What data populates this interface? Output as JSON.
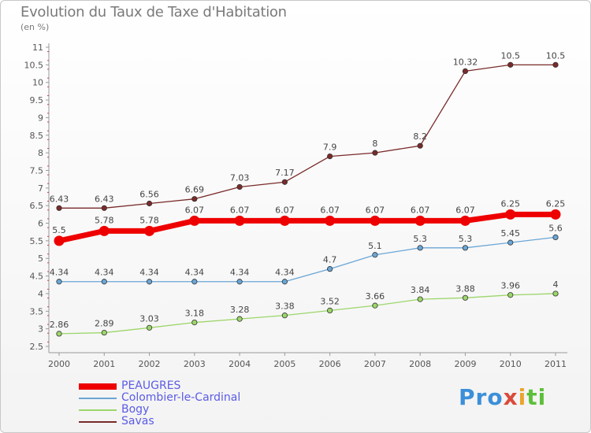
{
  "title": "Evolution du Taux de Taxe d'Habitation",
  "subtitle": "(en %)",
  "brand": {
    "p1": "Pro",
    "p2": "x",
    "p3": "i",
    "p4": "ti"
  },
  "chart_data": {
    "type": "line",
    "categories": [
      "2000",
      "2001",
      "2002",
      "2003",
      "2004",
      "2005",
      "2006",
      "2007",
      "2008",
      "2009",
      "2010",
      "2011"
    ],
    "ylim": [
      2.5,
      11
    ],
    "yticks": [
      2.5,
      3,
      3.5,
      4,
      4.5,
      5,
      5.5,
      6,
      6.5,
      7,
      7.5,
      8,
      8.5,
      9,
      9.5,
      10,
      10.5,
      11
    ],
    "ytick_labels": [
      "2.5",
      "3",
      "3.5",
      "4",
      "4.5",
      "5",
      "5.5",
      "6",
      "6.5",
      "7",
      "7.5",
      "8",
      "8.5",
      "9",
      "9.5",
      "10",
      "10.5",
      "11"
    ],
    "grid": false,
    "legend_position": "bottom-left",
    "series": [
      {
        "name": "PEAUGRES",
        "color": "#ee0000",
        "values": [
          5.5,
          5.78,
          5.78,
          6.07,
          6.07,
          6.07,
          6.07,
          6.07,
          6.07,
          6.07,
          6.25,
          6.25
        ],
        "labels": [
          "5.5",
          "5.78",
          "5.78",
          "6.07",
          "6.07",
          "6.07",
          "6.07",
          "6.07",
          "6.07",
          "6.07",
          "6.25",
          "6.25"
        ]
      },
      {
        "name": "Colombier-le-Cardinal",
        "color": "#6aa6d6",
        "values": [
          4.34,
          4.34,
          4.34,
          4.34,
          4.34,
          4.34,
          4.7,
          5.1,
          5.3,
          5.3,
          5.45,
          5.6
        ],
        "labels": [
          "4.34",
          "4.34",
          "4.34",
          "4.34",
          "4.34",
          "4.34",
          "4.7",
          "5.1",
          "5.3",
          "5.3",
          "5.45",
          "5.6"
        ]
      },
      {
        "name": "Bogy",
        "color": "#9cd66a",
        "values": [
          2.86,
          2.89,
          3.03,
          3.18,
          3.28,
          3.38,
          3.52,
          3.66,
          3.84,
          3.88,
          3.96,
          4
        ],
        "labels": [
          "2.86",
          "2.89",
          "3.03",
          "3.18",
          "3.28",
          "3.38",
          "3.52",
          "3.66",
          "3.84",
          "3.88",
          "3.96",
          "4"
        ]
      },
      {
        "name": "Savas",
        "color": "#7a2a2a",
        "values": [
          6.43,
          6.43,
          6.56,
          6.69,
          7.03,
          7.17,
          7.9,
          8,
          8.2,
          10.32,
          10.5,
          10.5
        ],
        "labels": [
          "6.43",
          "6.43",
          "6.56",
          "6.69",
          "7.03",
          "7.17",
          "7.9",
          "8",
          "8.2",
          "10.32",
          "10.5",
          "10.5"
        ]
      }
    ]
  }
}
